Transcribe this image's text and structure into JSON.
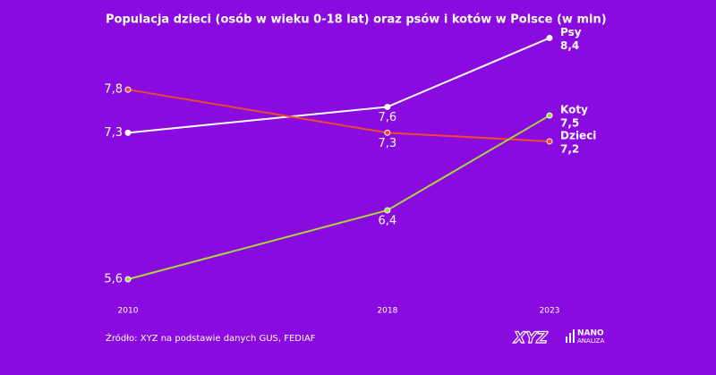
{
  "chart_data": {
    "type": "line",
    "title": "Populacja dzieci (osób w wieku 0-18 lat) oraz psów i kotów w Polsce (w mln)",
    "x": [
      2010,
      2018,
      2023
    ],
    "xlim": [
      2010,
      2023
    ],
    "xticks": [
      2010,
      2018,
      2023
    ],
    "ylim": [
      5.5,
      8.5
    ],
    "series": [
      {
        "name": "Psy",
        "color": "#ffffff",
        "values": [
          7.3,
          7.6,
          8.4
        ],
        "value_labels": [
          "7,3",
          "7,6",
          "8,4"
        ]
      },
      {
        "name": "Dzieci",
        "color": "#f2462e",
        "values": [
          7.8,
          7.3,
          7.2
        ],
        "value_labels": [
          "7,8",
          "7,3",
          "7,2"
        ]
      },
      {
        "name": "Koty",
        "color": "#a6d83c",
        "values": [
          5.6,
          6.4,
          7.5
        ],
        "value_labels": [
          "5,6",
          "6,4",
          "7,5"
        ]
      }
    ],
    "source": "Źródło: XYZ na podstawie danych GUS, FEDIAF"
  },
  "branding": {
    "logo": "XYZ",
    "nano": "NANO",
    "analiza": "ANALIZA"
  }
}
